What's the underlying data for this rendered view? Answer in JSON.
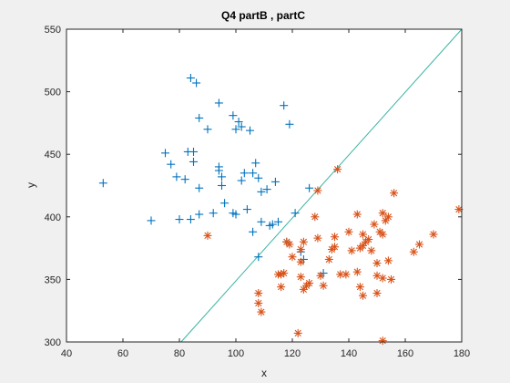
{
  "chart_data": {
    "type": "scatter",
    "title": "Q4 partB , partC",
    "xlabel": "x",
    "ylabel": "y",
    "xlim": [
      40,
      180
    ],
    "ylim": [
      300,
      550
    ],
    "xticks": [
      40,
      60,
      80,
      100,
      120,
      140,
      160,
      180
    ],
    "yticks": [
      300,
      350,
      400,
      450,
      500,
      550
    ],
    "grid": false,
    "legend": "none",
    "series": [
      {
        "marker": "plus",
        "color": "#0072BD",
        "points": [
          [
            53,
            427
          ],
          [
            70,
            397
          ],
          [
            75,
            451
          ],
          [
            77,
            442
          ],
          [
            79,
            432
          ],
          [
            80,
            398
          ],
          [
            82,
            430
          ],
          [
            83,
            452
          ],
          [
            84,
            511
          ],
          [
            84,
            398
          ],
          [
            85,
            444
          ],
          [
            85,
            452
          ],
          [
            86,
            507
          ],
          [
            87,
            402
          ],
          [
            87,
            423
          ],
          [
            87,
            479
          ],
          [
            90,
            470
          ],
          [
            92,
            403
          ],
          [
            94,
            491
          ],
          [
            94,
            440
          ],
          [
            94,
            437
          ],
          [
            95,
            425
          ],
          [
            95,
            432
          ],
          [
            96,
            411
          ],
          [
            99,
            481
          ],
          [
            99,
            403
          ],
          [
            100,
            402
          ],
          [
            100,
            470
          ],
          [
            101,
            476
          ],
          [
            102,
            472
          ],
          [
            102,
            429
          ],
          [
            103,
            435
          ],
          [
            104,
            406
          ],
          [
            105,
            469
          ],
          [
            106,
            435
          ],
          [
            106,
            388
          ],
          [
            107,
            443
          ],
          [
            108,
            431
          ],
          [
            108,
            368
          ],
          [
            109,
            420
          ],
          [
            109,
            396
          ],
          [
            111,
            422
          ],
          [
            112,
            393
          ],
          [
            113,
            394
          ],
          [
            114,
            428
          ],
          [
            115,
            396
          ],
          [
            117,
            489
          ],
          [
            118,
            380
          ],
          [
            119,
            474
          ],
          [
            121,
            403
          ],
          [
            123,
            372
          ],
          [
            124,
            366
          ],
          [
            126,
            423
          ],
          [
            131,
            355
          ]
        ]
      },
      {
        "marker": "asterisk",
        "color": "#D95319",
        "points": [
          [
            90,
            385
          ],
          [
            108,
            339
          ],
          [
            108,
            331
          ],
          [
            109,
            324
          ],
          [
            115,
            354
          ],
          [
            116,
            354
          ],
          [
            116,
            344
          ],
          [
            117,
            355
          ],
          [
            118,
            380
          ],
          [
            119,
            378
          ],
          [
            120,
            368
          ],
          [
            122,
            307
          ],
          [
            123,
            374
          ],
          [
            123,
            364
          ],
          [
            123,
            352
          ],
          [
            124,
            380
          ],
          [
            124,
            342
          ],
          [
            125,
            345
          ],
          [
            126,
            347
          ],
          [
            128,
            400
          ],
          [
            129,
            383
          ],
          [
            129,
            421
          ],
          [
            130,
            353
          ],
          [
            131,
            345
          ],
          [
            133,
            366
          ],
          [
            134,
            374
          ],
          [
            135,
            376
          ],
          [
            135,
            384
          ],
          [
            136,
            438
          ],
          [
            137,
            354
          ],
          [
            139,
            354
          ],
          [
            140,
            388
          ],
          [
            141,
            373
          ],
          [
            143,
            402
          ],
          [
            143,
            356
          ],
          [
            144,
            344
          ],
          [
            144,
            375
          ],
          [
            145,
            377
          ],
          [
            145,
            386
          ],
          [
            145,
            337
          ],
          [
            146,
            380
          ],
          [
            147,
            382
          ],
          [
            148,
            373
          ],
          [
            149,
            394
          ],
          [
            150,
            363
          ],
          [
            150,
            339
          ],
          [
            150,
            353
          ],
          [
            151,
            388
          ],
          [
            152,
            301
          ],
          [
            152,
            403
          ],
          [
            152,
            351
          ],
          [
            152,
            386
          ],
          [
            153,
            397
          ],
          [
            154,
            400
          ],
          [
            154,
            365
          ],
          [
            155,
            350
          ],
          [
            156,
            419
          ],
          [
            163,
            372
          ],
          [
            165,
            378
          ],
          [
            170,
            386
          ],
          [
            179,
            406
          ]
        ]
      }
    ],
    "lines": [
      {
        "color": "#3CB5A3",
        "x": [
          80.6,
          180
        ],
        "y": [
          300,
          550
        ]
      }
    ]
  }
}
